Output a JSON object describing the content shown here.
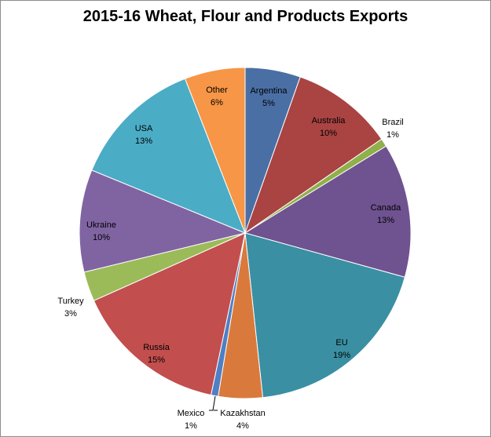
{
  "chart_data": {
    "type": "pie",
    "title": "2015-16 Wheat, Flour and Products Exports",
    "start_angle_deg": 0,
    "direction": "clockwise",
    "slices": [
      {
        "label": "Argentina",
        "pct_label": "5%",
        "value": 5.4,
        "color": "#4a6fa5"
      },
      {
        "label": "Australia",
        "pct_label": "10%",
        "value": 10.0,
        "color": "#a94442"
      },
      {
        "label": "Brazil",
        "pct_label": "1%",
        "value": 0.8,
        "color": "#8fb04a"
      },
      {
        "label": "Canada",
        "pct_label": "13%",
        "value": 13.1,
        "color": "#6f5290"
      },
      {
        "label": "EU",
        "pct_label": "19%",
        "value": 19.0,
        "color": "#3a8fa3"
      },
      {
        "label": "Kazakhstan",
        "pct_label": "4%",
        "value": 4.3,
        "color": "#d97a3c"
      },
      {
        "label": "Mexico",
        "pct_label": "1%",
        "value": 0.7,
        "color": "#4f7fc4"
      },
      {
        "label": "Russia",
        "pct_label": "15%",
        "value": 15.0,
        "color": "#c24e4e"
      },
      {
        "label": "Turkey",
        "pct_label": "3%",
        "value": 2.9,
        "color": "#9bbb59"
      },
      {
        "label": "Ukraine",
        "pct_label": "10%",
        "value": 10.0,
        "color": "#8064a2"
      },
      {
        "label": "USA",
        "pct_label": "13%",
        "value": 12.9,
        "color": "#4bacc6"
      },
      {
        "label": "Other",
        "pct_label": "6%",
        "value": 5.9,
        "color": "#f79646"
      }
    ]
  }
}
